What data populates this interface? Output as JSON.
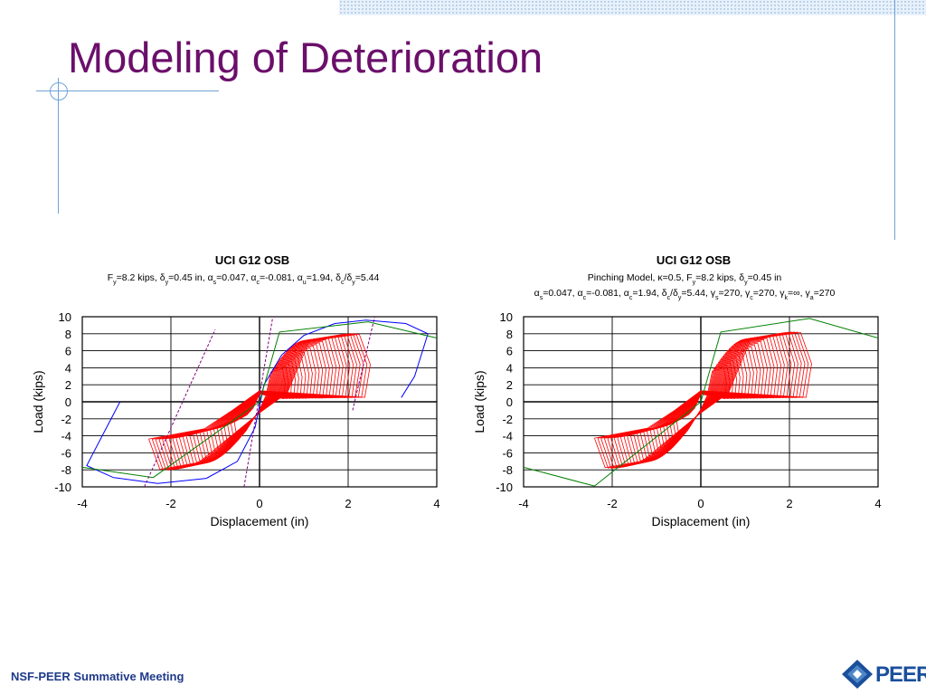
{
  "slide": {
    "title": "Modeling of Deterioration",
    "footer": "NSF-PEER Summative Meeting",
    "logo_text": "PEER"
  },
  "chart_data": [
    {
      "type": "line",
      "title": "UCI G12 OSB",
      "subtitle_lines": [
        "F(y)=8.2 kips, δ(y)=0.45 in, α(s)=0.047, α(c)=-0.081, α(u)=1.94, δ(c)/δ(y)=5.44"
      ],
      "xlabel": "Displacement (in)",
      "ylabel": "Load (kips)",
      "xlim": [
        -4,
        4
      ],
      "ylim": [
        -10,
        10
      ],
      "xticks": [
        "-4",
        "-2",
        "0",
        "2",
        "4"
      ],
      "yticks": [
        "10",
        "8",
        "6",
        "4",
        "2",
        "0",
        "-2",
        "-4",
        "-6",
        "-8",
        "-10"
      ],
      "grid": true,
      "series": [
        {
          "color": "#0000ff",
          "style": "solid",
          "points": [
            [
              -3.15,
              0
            ],
            [
              -3.5,
              -3.5
            ],
            [
              -3.9,
              -7.5
            ],
            [
              -3.3,
              -8.9
            ],
            [
              -2.3,
              -9.6
            ],
            [
              -1.2,
              -9.0
            ],
            [
              -0.5,
              -7.0
            ],
            [
              -0.1,
              -3.0
            ],
            [
              0.1,
              2.0
            ],
            [
              0.5,
              5.5
            ],
            [
              1.0,
              7.8
            ],
            [
              1.7,
              9.2
            ],
            [
              2.4,
              9.6
            ],
            [
              3.3,
              9.2
            ],
            [
              3.8,
              8.0
            ],
            [
              3.5,
              3.0
            ],
            [
              3.2,
              0.5
            ]
          ]
        },
        {
          "color": "#008000",
          "style": "solid",
          "points": [
            [
              -4,
              -7.7
            ],
            [
              -2.4,
              -8.9
            ],
            [
              0,
              0
            ],
            [
              0.45,
              8.2
            ],
            [
              2.45,
              9.4
            ],
            [
              4,
              7.5
            ]
          ]
        },
        {
          "color": "#800080",
          "style": "dashed",
          "points": [
            [
              -2.6,
              -10
            ],
            [
              -1.0,
              8.5
            ]
          ]
        },
        {
          "color": "#800080",
          "style": "dashed",
          "points": [
            [
              -0.35,
              -10
            ],
            [
              0.3,
              10
            ]
          ]
        },
        {
          "color": "#800080",
          "style": "dashed",
          "points": [
            [
              2.1,
              -1.0
            ],
            [
              2.6,
              10
            ]
          ]
        }
      ],
      "hysteresis": {
        "color": "#ff0000",
        "x_neg": -2.5,
        "x_pos": 2.5,
        "y_neg": -8.0,
        "y_pos": 8.0
      }
    },
    {
      "type": "line",
      "title": "UCI G12 OSB",
      "subtitle_lines": [
        "Pinching Model, κ=0.5, F(y)=8.2 kips, δ(y)=0.45 in",
        "α(s)=0.047, α(c)=-0.081, α(c)=1.94, δ(c)/δ(y)=5.44, γ(s)=270, γ(c)=270, γ(k)=∞, γ(a)=270"
      ],
      "xlabel": "Displacement (in)",
      "ylabel": "Load (kips)",
      "xlim": [
        -4,
        4
      ],
      "ylim": [
        -10,
        10
      ],
      "xticks": [
        "-4",
        "-2",
        "0",
        "2",
        "4"
      ],
      "yticks": [
        "10",
        "8",
        "6",
        "4",
        "2",
        "0",
        "-2",
        "-4",
        "-6",
        "-8",
        "-10"
      ],
      "grid": true,
      "series": [
        {
          "color": "#008000",
          "style": "solid",
          "points": [
            [
              -4,
              -7.7
            ],
            [
              -2.4,
              -9.9
            ],
            [
              0,
              0
            ],
            [
              0.45,
              8.2
            ],
            [
              2.45,
              9.8
            ],
            [
              4,
              7.5
            ]
          ]
        }
      ],
      "hysteresis": {
        "color": "#ff0000",
        "x_neg": -2.4,
        "x_pos": 2.5,
        "y_neg": -7.8,
        "y_pos": 8.2
      }
    }
  ]
}
